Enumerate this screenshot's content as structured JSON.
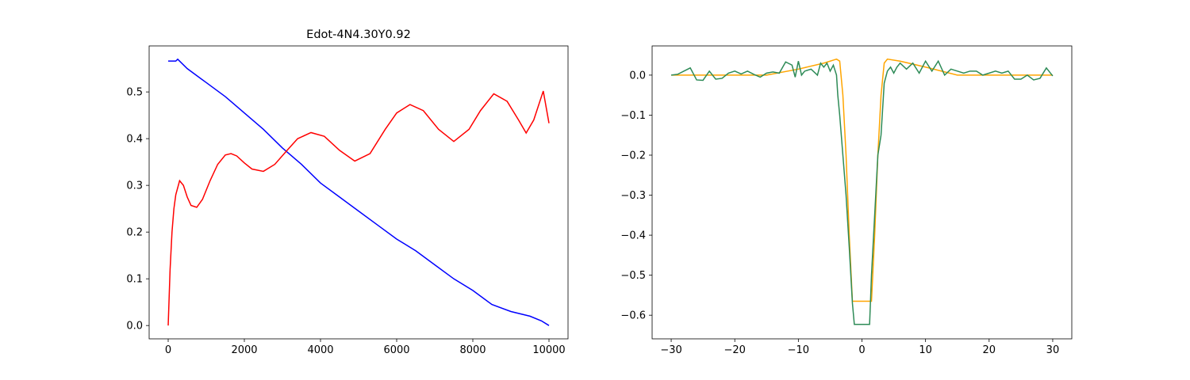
{
  "chart_data": [
    {
      "type": "line",
      "title": "Edot-4N4.30Y0.92",
      "xlim": [
        -500,
        10500
      ],
      "ylim": [
        -0.0285,
        0.5985
      ],
      "xticks": [
        0,
        2000,
        4000,
        6000,
        8000,
        10000
      ],
      "yticks": [
        {
          "value": 0,
          "label": "0.0"
        },
        {
          "value": 0.1,
          "label": "0.1"
        },
        {
          "value": 0.2,
          "label": "0.2"
        },
        {
          "value": 0.3,
          "label": "0.3"
        },
        {
          "value": 0.4,
          "label": "0.4"
        },
        {
          "value": 0.5,
          "label": "0.5"
        }
      ],
      "series": [
        {
          "color": "#0000ff",
          "x": [
            0,
            200,
            250,
            500,
            1000,
            1500,
            2000,
            2500,
            3000,
            3500,
            4000,
            4500,
            5000,
            5500,
            6000,
            6500,
            7000,
            7500,
            8000,
            8500,
            9000,
            9500,
            9800,
            10000
          ],
          "values": [
            0.566,
            0.566,
            0.57,
            0.55,
            0.52,
            0.49,
            0.455,
            0.42,
            0.38,
            0.345,
            0.305,
            0.275,
            0.245,
            0.215,
            0.185,
            0.16,
            0.13,
            0.1,
            0.075,
            0.045,
            0.03,
            0.02,
            0.01,
            0.0
          ]
        },
        {
          "color": "#ff0000",
          "x": [
            0,
            50,
            100,
            150,
            200,
            300,
            400,
            500,
            600,
            750,
            900,
            1100,
            1300,
            1500,
            1650,
            1800,
            2000,
            2200,
            2500,
            2800,
            3100,
            3400,
            3750,
            4100,
            4500,
            4900,
            5300,
            5700,
            6000,
            6350,
            6700,
            7100,
            7500,
            7900,
            8200,
            8550,
            8900,
            9200,
            9400,
            9600,
            9850,
            10000
          ],
          "values": [
            0,
            0.12,
            0.2,
            0.25,
            0.28,
            0.31,
            0.3,
            0.275,
            0.257,
            0.253,
            0.27,
            0.31,
            0.345,
            0.365,
            0.368,
            0.363,
            0.348,
            0.335,
            0.33,
            0.345,
            0.373,
            0.4,
            0.413,
            0.405,
            0.375,
            0.352,
            0.368,
            0.42,
            0.455,
            0.473,
            0.46,
            0.42,
            0.394,
            0.42,
            0.46,
            0.496,
            0.48,
            0.44,
            0.412,
            0.44,
            0.502,
            0.433
          ]
        }
      ]
    },
    {
      "type": "line",
      "xlim": [
        -33,
        33
      ],
      "ylim": [
        -0.659,
        0.073
      ],
      "xticks": [
        {
          "value": -30,
          "label": "−30"
        },
        {
          "value": -20,
          "label": "−20"
        },
        {
          "value": -10,
          "label": "−10"
        },
        0,
        10,
        20,
        30
      ],
      "yticks": [
        {
          "value": 0,
          "label": "0.0"
        },
        {
          "value": -0.1,
          "label": "−0.1"
        },
        {
          "value": -0.2,
          "label": "−0.2"
        },
        {
          "value": -0.3,
          "label": "−0.3"
        },
        {
          "value": -0.4,
          "label": "−0.4"
        },
        {
          "value": -0.5,
          "label": "−0.5"
        },
        {
          "value": -0.6,
          "label": "−0.6"
        }
      ],
      "series": [
        {
          "color": "#ffa500",
          "x": [
            -30,
            -15,
            -10,
            -6,
            -4,
            -3.5,
            -3,
            -2.5,
            -2,
            -1.5,
            1.5,
            2,
            2.5,
            3,
            3.5,
            4,
            6,
            10,
            15,
            30
          ],
          "values": [
            0,
            0,
            0.015,
            0.03,
            0.04,
            0.035,
            -0.05,
            -0.2,
            -0.4,
            -0.565,
            -0.565,
            -0.4,
            -0.2,
            -0.05,
            0.03,
            0.04,
            0.035,
            0.02,
            0,
            0
          ]
        },
        {
          "color": "#2e8b57",
          "x": [
            -30,
            -29,
            -28,
            -27,
            -26,
            -25,
            -24,
            -23,
            -22,
            -21,
            -20,
            -19,
            -18,
            -17,
            -16,
            -15,
            -14,
            -13,
            -12,
            -11,
            -10.5,
            -10,
            -9.5,
            -9,
            -8,
            -7,
            -6.5,
            -6,
            -5.5,
            -5,
            -4.5,
            -4,
            -3.8,
            -3.5,
            -3,
            -2.5,
            -2,
            -1.5,
            -1.2,
            1.2,
            1.5,
            2,
            2.5,
            3,
            3.5,
            4,
            4.5,
            5,
            5.5,
            6,
            7,
            8,
            9,
            10,
            11,
            12,
            13,
            14,
            15,
            16,
            17,
            18,
            19,
            20,
            21,
            22,
            23,
            24,
            25,
            26,
            27,
            28,
            29,
            30
          ],
          "values": [
            0,
            0.002,
            0.01,
            0.018,
            -0.012,
            -0.013,
            0.01,
            -0.01,
            -0.008,
            0.005,
            0.01,
            0.003,
            0.01,
            0.002,
            -0.005,
            0.005,
            0.008,
            0.005,
            0.033,
            0.025,
            -0.005,
            0.035,
            0,
            0.01,
            0.015,
            0,
            0.03,
            0.02,
            0.03,
            0.01,
            0.025,
            0,
            -0.05,
            -0.1,
            -0.2,
            -0.3,
            -0.43,
            -0.57,
            -0.623,
            -0.623,
            -0.5,
            -0.35,
            -0.2,
            -0.15,
            -0.02,
            0.01,
            0.02,
            0.005,
            0.02,
            0.03,
            0.015,
            0.03,
            0.005,
            0.035,
            0.01,
            0.035,
            0,
            0.015,
            0.01,
            0.005,
            0.01,
            0.01,
            0,
            0.005,
            0.01,
            0.005,
            0.01,
            -0.01,
            -0.01,
            0,
            -0.012,
            -0.008,
            0.018,
            -0.002
          ]
        }
      ]
    }
  ]
}
